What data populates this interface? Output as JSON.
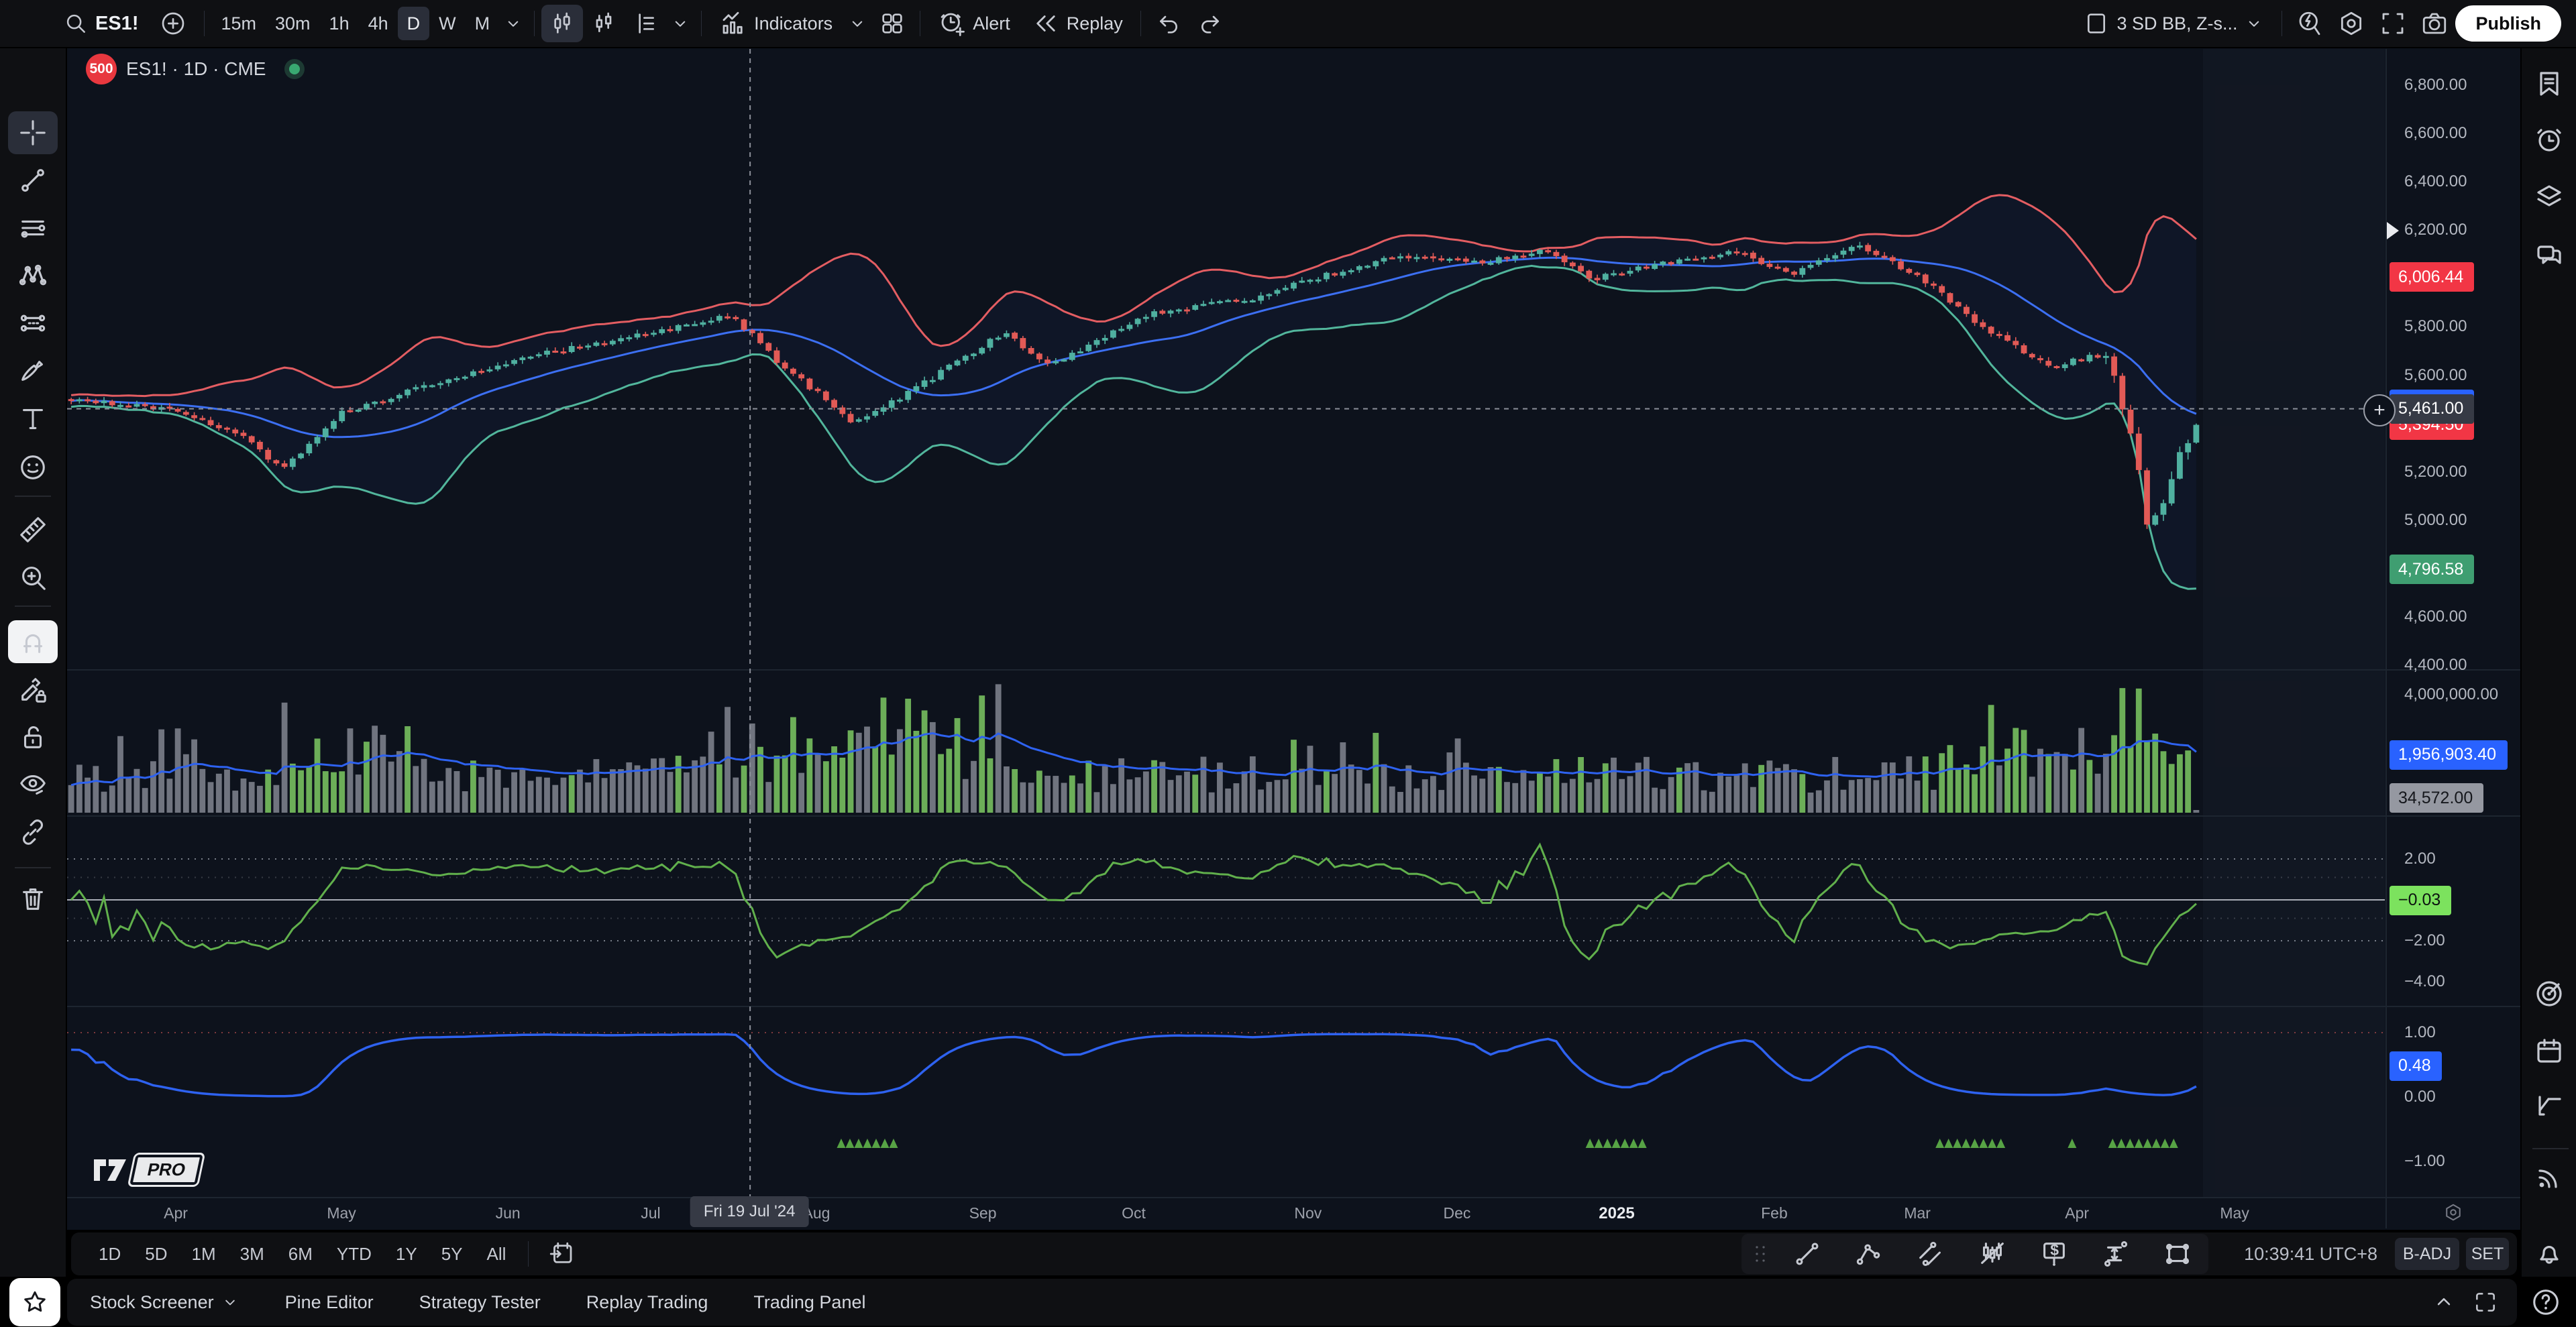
{
  "topbar": {
    "symbol": "ES1!",
    "timeframes": [
      "15m",
      "30m",
      "1h",
      "4h",
      "D",
      "W",
      "M"
    ],
    "selected_timeframe": "D",
    "indicators_label": "Indicators",
    "alert_label": "Alert",
    "replay_label": "Replay",
    "layout_name": "3 SD BB, Z-s...",
    "publish_label": "Publish"
  },
  "legend": {
    "index_badge": "500",
    "title": "ES1! · 1D · CME"
  },
  "watermark": {
    "pro_label": "PRO"
  },
  "left_toolbar": {
    "tools": [
      {
        "icon": "crosshair",
        "selected": "dark"
      },
      {
        "icon": "trend-line"
      },
      {
        "icon": "horizontal-lines"
      },
      {
        "icon": "xabcd-pattern"
      },
      {
        "icon": "fib-retracement"
      },
      {
        "icon": "brush"
      },
      {
        "icon": "text-tool"
      },
      {
        "icon": "emoji"
      },
      {
        "divider": true
      },
      {
        "icon": "ruler"
      },
      {
        "icon": "zoom-in"
      },
      {
        "divider": true
      },
      {
        "icon": "magnet",
        "selected": "light"
      },
      {
        "icon": "pencil-lock"
      },
      {
        "icon": "lock"
      },
      {
        "icon": "eye-hide"
      },
      {
        "icon": "link"
      },
      {
        "divider": true
      },
      {
        "icon": "trash"
      }
    ]
  },
  "right_sidebar": {
    "top": [
      {
        "icon": "watchlist"
      },
      {
        "icon": "alarm"
      },
      {
        "icon": "layers"
      },
      {
        "icon": "chat"
      }
    ],
    "bottom": [
      {
        "icon": "radar"
      },
      {
        "icon": "calendar"
      },
      {
        "icon": "forecast"
      },
      {
        "divider": true
      },
      {
        "icon": "feed"
      }
    ],
    "bell": "bell",
    "help_label": "?"
  },
  "price_axis": {
    "ticks": [
      {
        "label": "6,800.00",
        "value": 6800
      },
      {
        "label": "6,600.00",
        "value": 6600
      },
      {
        "label": "6,400.00",
        "value": 6400
      },
      {
        "label": "6,200.00",
        "value": 6200
      },
      {
        "label": "5,800.00",
        "value": 5800
      },
      {
        "label": "5,600.00",
        "value": 5600
      },
      {
        "label": "5,200.00",
        "value": 5200
      },
      {
        "label": "5,000.00",
        "value": 5000
      },
      {
        "label": "4,600.00",
        "value": 4600
      },
      {
        "label": "4,400.00",
        "value": 4400
      }
    ],
    "badges": [
      {
        "name": "bb-upper-value",
        "label": "6,006.44",
        "value": 6006.44,
        "style": "red"
      },
      {
        "name": "bb-basis-value",
        "label": "",
        "value": 5480,
        "style": "blue"
      },
      {
        "name": "last-price",
        "label": "5,394.50",
        "value": 5394.5,
        "style": "red"
      },
      {
        "name": "bb-lower-value",
        "label": "4,796.58",
        "value": 4796.58,
        "style": "green"
      }
    ],
    "crosshair_label": "5,461.00"
  },
  "volume_axis": {
    "ticks": [
      {
        "label": "4,000,000.00",
        "value": 4000000
      }
    ],
    "badges": [
      {
        "name": "volume-ma-value",
        "label": "1,956,903.40",
        "value": 1956903.4,
        "style": "blue",
        "width": 176
      },
      {
        "name": "volume-value",
        "label": "34,572.00",
        "value": 34572,
        "style": "gray",
        "width": 140
      }
    ]
  },
  "zscore_axis": {
    "ticks": [
      {
        "label": "2.00",
        "value": 2
      },
      {
        "label": "−2.00",
        "value": -2
      },
      {
        "label": "−4.00",
        "value": -4
      }
    ],
    "badge": {
      "label": "−0.03",
      "value": -0.03
    },
    "levels": {
      "outer": [
        2,
        -2
      ],
      "inner": [
        1.1,
        -0.9
      ],
      "zero": 0
    }
  },
  "signal_axis": {
    "ticks": [
      {
        "label": "1.00",
        "value": 1
      },
      {
        "label": "0.00",
        "value": 0
      },
      {
        "label": "−1.00",
        "value": -1
      }
    ],
    "badge": {
      "label": "0.48",
      "value": 0.48
    },
    "level": 1
  },
  "time_axis": {
    "labels": [
      {
        "t": "Apr",
        "f": 0.0469
      },
      {
        "t": "May",
        "f": 0.1184
      },
      {
        "t": "Jun",
        "f": 0.1902
      },
      {
        "t": "Jul",
        "f": 0.2518
      },
      {
        "t": "Aug",
        "f": 0.3233
      },
      {
        "t": "Sep",
        "f": 0.3951
      },
      {
        "t": "Oct",
        "f": 0.4602
      },
      {
        "t": "Nov",
        "f": 0.5354
      },
      {
        "t": "Dec",
        "f": 0.5997
      },
      {
        "t": "2025",
        "f": 0.6686,
        "strong": true
      },
      {
        "t": "Feb",
        "f": 0.7366
      },
      {
        "t": "Mar",
        "f": 0.7983
      },
      {
        "t": "Apr",
        "f": 0.8672
      },
      {
        "t": "May",
        "f": 0.9352
      }
    ]
  },
  "crosshair": {
    "price": 5461,
    "price_label": "5,461.00",
    "time_label": "Fri 19 Jul '24",
    "time_frac": 0.2944
  },
  "bottom_toolbar": {
    "ranges": [
      "1D",
      "5D",
      "1M",
      "3M",
      "6M",
      "YTD",
      "1Y",
      "5Y",
      "All"
    ],
    "drawing_tools": [
      "dt-trend",
      "dt-polyline",
      "dt-channel",
      "dt-pattern",
      "dt-price-label",
      "dt-range",
      "dt-rect"
    ],
    "clock": "10:39:41 UTC+8",
    "adjust_label": "B-ADJ",
    "session_label": "SET"
  },
  "status_bar": {
    "items": [
      {
        "label": "Stock Screener",
        "chevron": true
      },
      {
        "label": "Pine Editor"
      },
      {
        "label": "Strategy Tester"
      },
      {
        "label": "Replay Trading"
      },
      {
        "label": "Trading Panel"
      }
    ]
  },
  "chart": {
    "symbol": "ES1!",
    "interval": "1D",
    "exchange": "CME",
    "type": "candlestick",
    "bars": 260,
    "price_range": [
      4400,
      6800
    ],
    "indicators": [
      "Bollinger Bands 3 SD",
      "Volume",
      "Z-score",
      "Signal"
    ],
    "price_anchors": [
      [
        0,
        5500
      ],
      [
        0.05,
        5460
      ],
      [
        0.084,
        5330
      ],
      [
        0.099,
        5205
      ],
      [
        0.126,
        5440
      ],
      [
        0.173,
        5575
      ],
      [
        0.223,
        5690
      ],
      [
        0.288,
        5800
      ],
      [
        0.311,
        5850
      ],
      [
        0.33,
        5675
      ],
      [
        0.369,
        5400
      ],
      [
        0.4,
        5560
      ],
      [
        0.438,
        5775
      ],
      [
        0.461,
        5645
      ],
      [
        0.508,
        5855
      ],
      [
        0.554,
        5915
      ],
      [
        0.585,
        6000
      ],
      [
        0.623,
        6090
      ],
      [
        0.662,
        6065
      ],
      [
        0.693,
        6120
      ],
      [
        0.715,
        5995
      ],
      [
        0.746,
        6055
      ],
      [
        0.785,
        6110
      ],
      [
        0.808,
        6015
      ],
      [
        0.839,
        6140
      ],
      [
        0.869,
        6015
      ],
      [
        0.9,
        5795
      ],
      [
        0.931,
        5635
      ],
      [
        0.958,
        5690
      ],
      [
        0.97,
        5340
      ],
      [
        0.977,
        4975
      ],
      [
        0.984,
        5070
      ],
      [
        0.99,
        5230
      ],
      [
        0.995,
        5295
      ],
      [
        1,
        5394.5
      ]
    ],
    "volume_zones": [
      [
        0.02,
        0.06,
        1.35
      ],
      [
        0.1,
        0.17,
        1.6
      ],
      [
        0.3,
        0.44,
        1.85
      ],
      [
        0.57,
        0.66,
        1.3
      ],
      [
        0.88,
        0.998,
        2.0
      ]
    ],
    "signal_markers": [
      [
        0.361,
        0.389
      ],
      [
        0.712,
        0.739
      ],
      [
        0.876,
        0.91
      ],
      [
        0.938,
        0.941
      ],
      [
        0.957,
        0.988
      ]
    ]
  },
  "colors": {
    "up": "#4fb0a0",
    "down": "#e25a56",
    "bb_upper": "#e35d62",
    "bb_lower": "#52b69c",
    "bb_basis": "#3c6ff2",
    "vol_up": "#6cae58",
    "vol_neutral": "#70747f",
    "vol_ma": "#2e62f0",
    "z_line": "#61b04c",
    "sig_line": "#2e62f0",
    "marker": "#57a345",
    "badge_red": "#f23645",
    "badge_green": "#3f9e71",
    "badge_blue": "#2962ff",
    "badge_gray": "#9598a1",
    "z_badge": "#7ce25e",
    "crosshair_badge": "#363a45",
    "chart_bg": "#0d121c"
  }
}
